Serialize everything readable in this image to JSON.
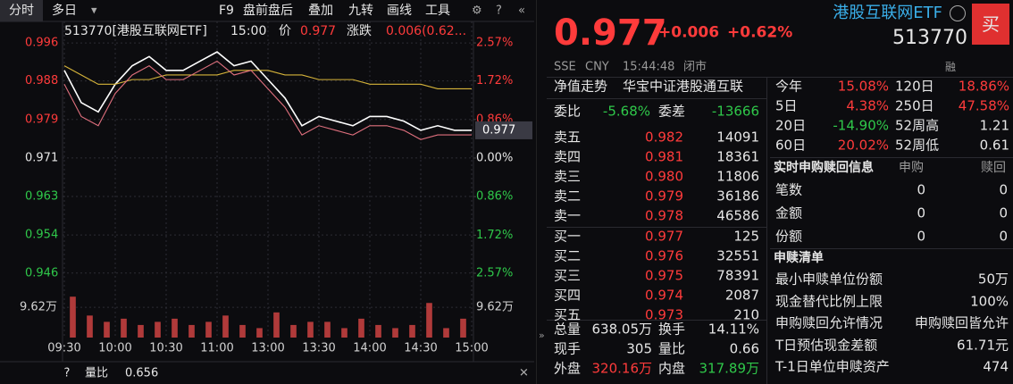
{
  "toolbar": {
    "tabs": [
      "分时",
      "多日"
    ],
    "tools": [
      "F9",
      "盘前盘后",
      "叠加",
      "九转",
      "画线",
      "工具"
    ]
  },
  "chart_header": {
    "code_name": "513770[港股互联网ETF]",
    "time": "15:00",
    "price_label": "价",
    "price": "0.977",
    "change_label": "涨跌",
    "change": "0.006(0.62..."
  },
  "chart_data": [
    {
      "type": "line",
      "x": [
        0,
        10,
        20,
        30,
        40,
        50,
        60,
        70,
        80,
        90,
        100,
        110,
        120,
        130,
        140,
        150,
        160,
        170,
        180,
        190,
        200,
        210,
        220,
        230,
        240
      ],
      "xlim": [
        0,
        240
      ],
      "xticks": [
        {
          "value": 0,
          "label": "09:30"
        },
        {
          "value": 30,
          "label": "10:00"
        },
        {
          "value": 60,
          "label": "10:30"
        },
        {
          "value": 90,
          "label": "11:00"
        },
        {
          "value": 120,
          "label": "13:00"
        },
        {
          "value": 150,
          "label": "13:30"
        },
        {
          "value": 180,
          "label": "14:00"
        },
        {
          "value": 210,
          "label": "14:30"
        },
        {
          "value": 240,
          "label": "15:00"
        }
      ],
      "ylim": [
        0.9433,
        0.9979
      ],
      "yticks": [
        {
          "value": 0.99595,
          "label": "0.996"
        },
        {
          "value": 0.9877,
          "label": "0.988"
        },
        {
          "value": 0.97935,
          "label": "0.979"
        },
        {
          "value": 0.971,
          "label": "0.971"
        },
        {
          "value": 0.96265,
          "label": "0.963"
        },
        {
          "value": 0.9543,
          "label": "0.954"
        },
        {
          "value": 0.94605,
          "label": "0.946"
        }
      ],
      "y2lim": [
        -2.85,
        2.77
      ],
      "y2ticks": [
        {
          "value": 2.57,
          "label": "2.57%"
        },
        {
          "value": 1.72,
          "label": "1.72%"
        },
        {
          "value": 0.86,
          "label": "0.86%"
        },
        {
          "value": 0,
          "label": "0.00%"
        },
        {
          "value": -0.86,
          "label": "0.86%"
        },
        {
          "value": -1.72,
          "label": "1.72%"
        },
        {
          "value": -2.57,
          "label": "2.57%"
        }
      ],
      "series": [
        {
          "color": "#ffffff",
          "values": [
            0.99,
            0.983,
            0.981,
            0.987,
            0.991,
            0.993,
            0.99,
            0.99,
            0.992,
            0.994,
            0.991,
            0.992,
            0.988,
            0.984,
            0.978,
            0.98,
            0.979,
            0.978,
            0.98,
            0.98,
            0.979,
            0.977,
            0.978,
            0.977,
            0.977
          ]
        },
        {
          "color": "#d6b43a",
          "values": [
            0.991,
            0.989,
            0.987,
            0.987,
            0.988,
            0.988,
            0.989,
            0.989,
            0.989,
            0.989,
            0.99,
            0.99,
            0.99,
            0.989,
            0.989,
            0.988,
            0.988,
            0.988,
            0.987,
            0.987,
            0.987,
            0.987,
            0.986,
            0.986,
            0.986
          ]
        },
        {
          "color": "#e0707e",
          "values": [
            0.987,
            0.98,
            0.978,
            0.985,
            0.989,
            0.991,
            0.988,
            0.988,
            0.99,
            0.992,
            0.989,
            0.99,
            0.986,
            0.982,
            0.976,
            0.978,
            0.977,
            0.976,
            0.978,
            0.978,
            0.977,
            0.975,
            0.976,
            0.976,
            0.976
          ]
        }
      ],
      "last_price_tag": "0.977"
    },
    {
      "type": "bar",
      "x": [
        5,
        15,
        25,
        35,
        45,
        55,
        65,
        75,
        85,
        95,
        105,
        115,
        125,
        135,
        145,
        155,
        165,
        175,
        185,
        195,
        205,
        215,
        225,
        235
      ],
      "xlim": [
        0,
        240
      ],
      "values": [
        13,
        7,
        5,
        6,
        4,
        5,
        6,
        4,
        5,
        7,
        4,
        3,
        8,
        4,
        5,
        5,
        3,
        6,
        4,
        3,
        4,
        11,
        3,
        6
      ],
      "color": "#b03a3a",
      "ylim": [
        0,
        15.9
      ],
      "yticks": [
        {
          "value": 9.62,
          "label": "9.62万"
        }
      ]
    }
  ],
  "bottom_bar": {
    "help": "?",
    "ratio_label": "量比",
    "ratio": "0.656"
  },
  "quote": {
    "name": "港股互联网ETF",
    "code": "513770",
    "buy": "买",
    "price": "0.977",
    "change": "+0.006",
    "change_pct": "+0.62%",
    "market": "SSE",
    "currency": "CNY",
    "time": "15:44:48",
    "status": "闭市",
    "margin": "融"
  },
  "nav": {
    "label": "净值走势",
    "index": "华宝中证港股通互联"
  },
  "committee": {
    "ratio_label": "委比",
    "ratio": "-5.68%",
    "diff_label": "委差",
    "diff": "-13666"
  },
  "order_book": {
    "sells": [
      [
        "卖五",
        "0.982",
        "14091"
      ],
      [
        "卖四",
        "0.981",
        "18361"
      ],
      [
        "卖三",
        "0.980",
        "11806"
      ],
      [
        "卖二",
        "0.979",
        "36186"
      ],
      [
        "卖一",
        "0.978",
        "46586"
      ]
    ],
    "buys": [
      [
        "买一",
        "0.977",
        "125"
      ],
      [
        "买二",
        "0.976",
        "32551"
      ],
      [
        "买三",
        "0.975",
        "78391"
      ],
      [
        "买四",
        "0.974",
        "2087"
      ],
      [
        "买五",
        "0.973",
        "210"
      ]
    ]
  },
  "stats": [
    [
      "总量",
      "638.05万",
      "换手",
      "14.11%"
    ],
    [
      "现手",
      "305",
      "量比",
      "0.66"
    ],
    [
      "外盘",
      "320.16万",
      "内盘",
      "317.89万"
    ]
  ],
  "performance": [
    [
      "今年",
      "15.08%",
      "120日",
      "18.86%"
    ],
    [
      "5日",
      "4.38%",
      "250日",
      "47.58%"
    ],
    [
      "20日",
      "-14.90%",
      "52周高",
      "1.21"
    ],
    [
      "60日",
      "20.02%",
      "52周低",
      "0.61"
    ]
  ],
  "realtime": {
    "title": "实时申购赎回信息",
    "cols": [
      "申购",
      "赎回"
    ],
    "rows": [
      [
        "笔数",
        "0",
        "0"
      ],
      [
        "金额",
        "0",
        "0"
      ],
      [
        "份额",
        "0",
        "0"
      ]
    ]
  },
  "redeem_list": {
    "title": "申赎清单",
    "rows": [
      [
        "最小申赎单位份额",
        "50万"
      ],
      [
        "现金替代比例上限",
        "100%"
      ],
      [
        "申购赎回允许情况",
        "申购赎回皆允许"
      ],
      [
        "T日预估现金差额",
        "61.71元"
      ],
      [
        "T-1日单位申赎资产",
        "474"
      ]
    ]
  }
}
